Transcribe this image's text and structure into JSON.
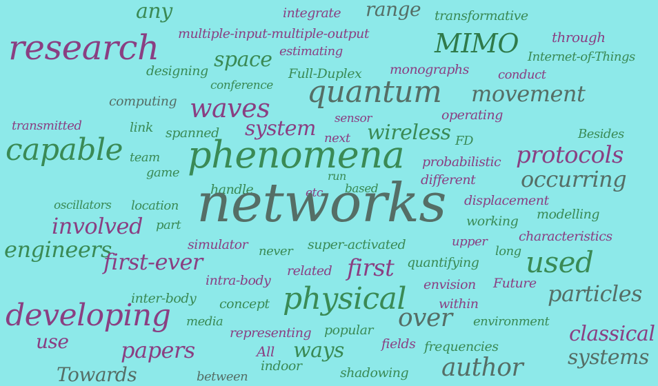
{
  "palette": {
    "background": "#8de9e9",
    "green": "#3a8a55",
    "gray": "#556e66",
    "purple": "#8a3f82",
    "dark_green": "#2f7a4a"
  },
  "words": {
    "any": "any",
    "integrate": "integrate",
    "range": "range",
    "transformative": "transformative",
    "mimo_long": "multiple-input-multiple-output",
    "through": "through",
    "research": "research",
    "estimating": "estimating",
    "mimo": "MIMO",
    "iot": "Internet-of-Things",
    "space": "space",
    "designing": "designing",
    "full_duplex": "Full-Duplex",
    "monographs": "monographs",
    "conduct": "conduct",
    "conference": "conference",
    "quantum": "quantum",
    "movement": "movement",
    "computing": "computing",
    "waves": "waves",
    "sensor": "sensor",
    "operating": "operating",
    "transmitted": "transmitted",
    "link": "link",
    "spanned": "spanned",
    "system": "system",
    "next": "next",
    "wireless": "wireless",
    "besides": "Besides",
    "fd": "FD",
    "capable": "capable",
    "team": "team",
    "phenomena": "phenomena",
    "probabilistic": "probabilistic",
    "protocols": "protocols",
    "game": "game",
    "run": "run",
    "handle": "handle",
    "based": "based",
    "different": "different",
    "occurring": "occurring",
    "etc": "etc",
    "oscillators": "oscillators",
    "location": "location",
    "networks": "networks",
    "displacement": "displacement",
    "modelling": "modelling",
    "involved": "involved",
    "part": "part",
    "working": "working",
    "characteristics": "characteristics",
    "simulator": "simulator",
    "never": "never",
    "super_activated": "super-activated",
    "upper": "upper",
    "engineers": "engineers",
    "long": "long",
    "first_ever": "first-ever",
    "first": "first",
    "quantifying": "quantifying",
    "used": "used",
    "related": "related",
    "intra_body": "intra-body",
    "envision": "envision",
    "future": "Future",
    "particles": "particles",
    "inter_body": "inter-body",
    "physical": "physical",
    "concept": "concept",
    "within": "within",
    "developing": "developing",
    "over": "over",
    "media": "media",
    "environment": "environment",
    "representing": "representing",
    "popular": "popular",
    "classical": "classical",
    "use": "use",
    "fields": "fields",
    "frequencies": "frequencies",
    "papers": "papers",
    "all": "All",
    "ways": "ways",
    "systems": "systems",
    "indoor": "indoor",
    "author": "author",
    "towards": "Towards",
    "between": "between",
    "shadowing": "shadowing"
  }
}
